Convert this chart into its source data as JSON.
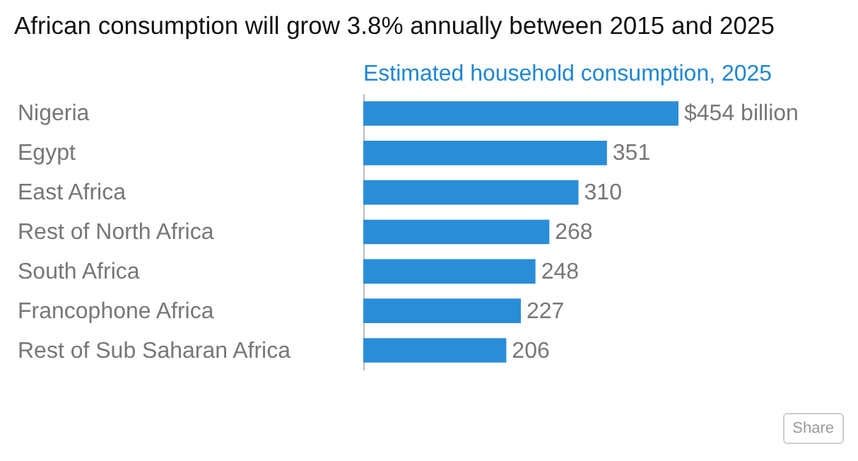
{
  "chart_data": {
    "type": "bar",
    "orientation": "horizontal",
    "title": "African consumption will grow 3.8% annually between 2015 and 2025",
    "subtitle": "Estimated household consumption, 2025",
    "categories": [
      "Nigeria",
      "Egypt",
      "East Africa",
      "Rest of North Africa",
      "South Africa",
      "Francophone Africa",
      "Rest of Sub Saharan Africa"
    ],
    "values": [
      454,
      351,
      310,
      268,
      248,
      227,
      206
    ],
    "value_labels": [
      "$454 billion",
      "351",
      "310",
      "268",
      "248",
      "227",
      "206"
    ],
    "color": "#2a8dd8",
    "annotations": [
      "Share"
    ]
  }
}
